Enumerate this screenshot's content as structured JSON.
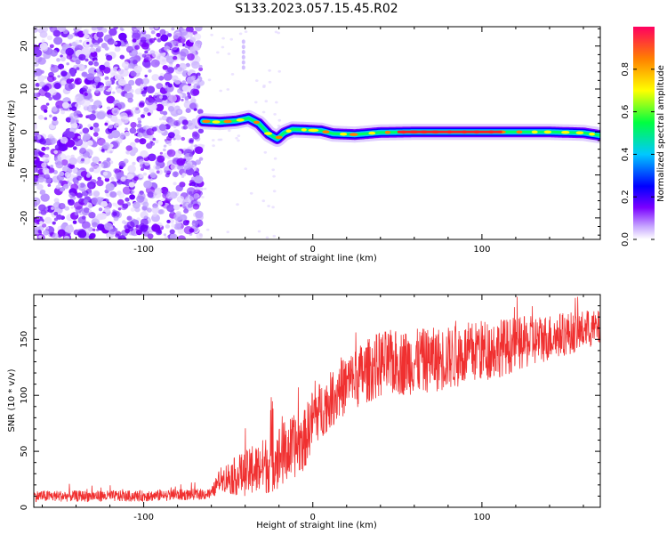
{
  "title": "S133.2023.057.15.45.R02",
  "chart_data": [
    {
      "type": "heatmap",
      "xlabel": "Height of straight line (km)",
      "ylabel": "Frequency (Hz)",
      "xlim": [
        -165,
        170
      ],
      "ylim": [
        -25,
        24.5
      ],
      "x_ticks": [
        -100,
        0,
        100
      ],
      "y_ticks": [
        20,
        10,
        0,
        -10,
        -20
      ],
      "colorbar": {
        "label": "Normalized spectral amplitude",
        "range": [
          0,
          1
        ],
        "ticks": [
          0.0,
          0.2,
          0.4,
          0.6,
          0.8
        ],
        "colors": [
          "#ffffff",
          "#c8a8ff",
          "#7a00ff",
          "#0000ff",
          "#00c8ff",
          "#00ff40",
          "#ffff00",
          "#ff8000",
          "#ff0060"
        ]
      },
      "noise_region_x": [
        -165,
        -66
      ],
      "signal_track": [
        {
          "x": -65,
          "y": 2.5
        },
        {
          "x": -55,
          "y": 2.3
        },
        {
          "x": -45,
          "y": 2.6
        },
        {
          "x": -38,
          "y": 3.2
        },
        {
          "x": -32,
          "y": 2.0
        },
        {
          "x": -26,
          "y": -0.5
        },
        {
          "x": -21,
          "y": -1.6
        },
        {
          "x": -17,
          "y": -0.2
        },
        {
          "x": -12,
          "y": 0.6
        },
        {
          "x": -5,
          "y": 0.5
        },
        {
          "x": 5,
          "y": 0.3
        },
        {
          "x": 12,
          "y": -0.4
        },
        {
          "x": 25,
          "y": -0.6
        },
        {
          "x": 40,
          "y": -0.1
        },
        {
          "x": 60,
          "y": 0.0
        },
        {
          "x": 80,
          "y": 0.0
        },
        {
          "x": 100,
          "y": 0.0
        },
        {
          "x": 120,
          "y": 0.0
        },
        {
          "x": 140,
          "y": 0.0
        },
        {
          "x": 160,
          "y": -0.2
        },
        {
          "x": 170,
          "y": -0.8
        }
      ]
    },
    {
      "type": "line",
      "xlabel": "Height of straight line (km)",
      "ylabel": "SNR (10 * v/v)",
      "xlim": [
        -165,
        170
      ],
      "ylim": [
        0,
        190
      ],
      "x_ticks": [
        -100,
        0,
        100
      ],
      "y_ticks": [
        0,
        50,
        100,
        150
      ],
      "series": [
        {
          "color": "#f03030",
          "trend": [
            {
              "x": -165,
              "y": 10
            },
            {
              "x": -100,
              "y": 10
            },
            {
              "x": -60,
              "y": 12
            },
            {
              "x": -55,
              "y": 25
            },
            {
              "x": -45,
              "y": 28
            },
            {
              "x": -35,
              "y": 32
            },
            {
              "x": -25,
              "y": 40
            },
            {
              "x": -15,
              "y": 50
            },
            {
              "x": -5,
              "y": 60
            },
            {
              "x": 0,
              "y": 80
            },
            {
              "x": 10,
              "y": 95
            },
            {
              "x": 20,
              "y": 110
            },
            {
              "x": 30,
              "y": 120
            },
            {
              "x": 40,
              "y": 128
            },
            {
              "x": 60,
              "y": 130
            },
            {
              "x": 80,
              "y": 133
            },
            {
              "x": 100,
              "y": 140
            },
            {
              "x": 120,
              "y": 145
            },
            {
              "x": 140,
              "y": 152
            },
            {
              "x": 160,
              "y": 158
            },
            {
              "x": 170,
              "y": 160
            }
          ],
          "spread": [
            {
              "x": -165,
              "y": 5
            },
            {
              "x": -60,
              "y": 5
            },
            {
              "x": -50,
              "y": 15
            },
            {
              "x": -20,
              "y": 30
            },
            {
              "x": 10,
              "y": 25
            },
            {
              "x": 40,
              "y": 30
            },
            {
              "x": 100,
              "y": 28
            },
            {
              "x": 170,
              "y": 16
            }
          ]
        }
      ]
    }
  ]
}
